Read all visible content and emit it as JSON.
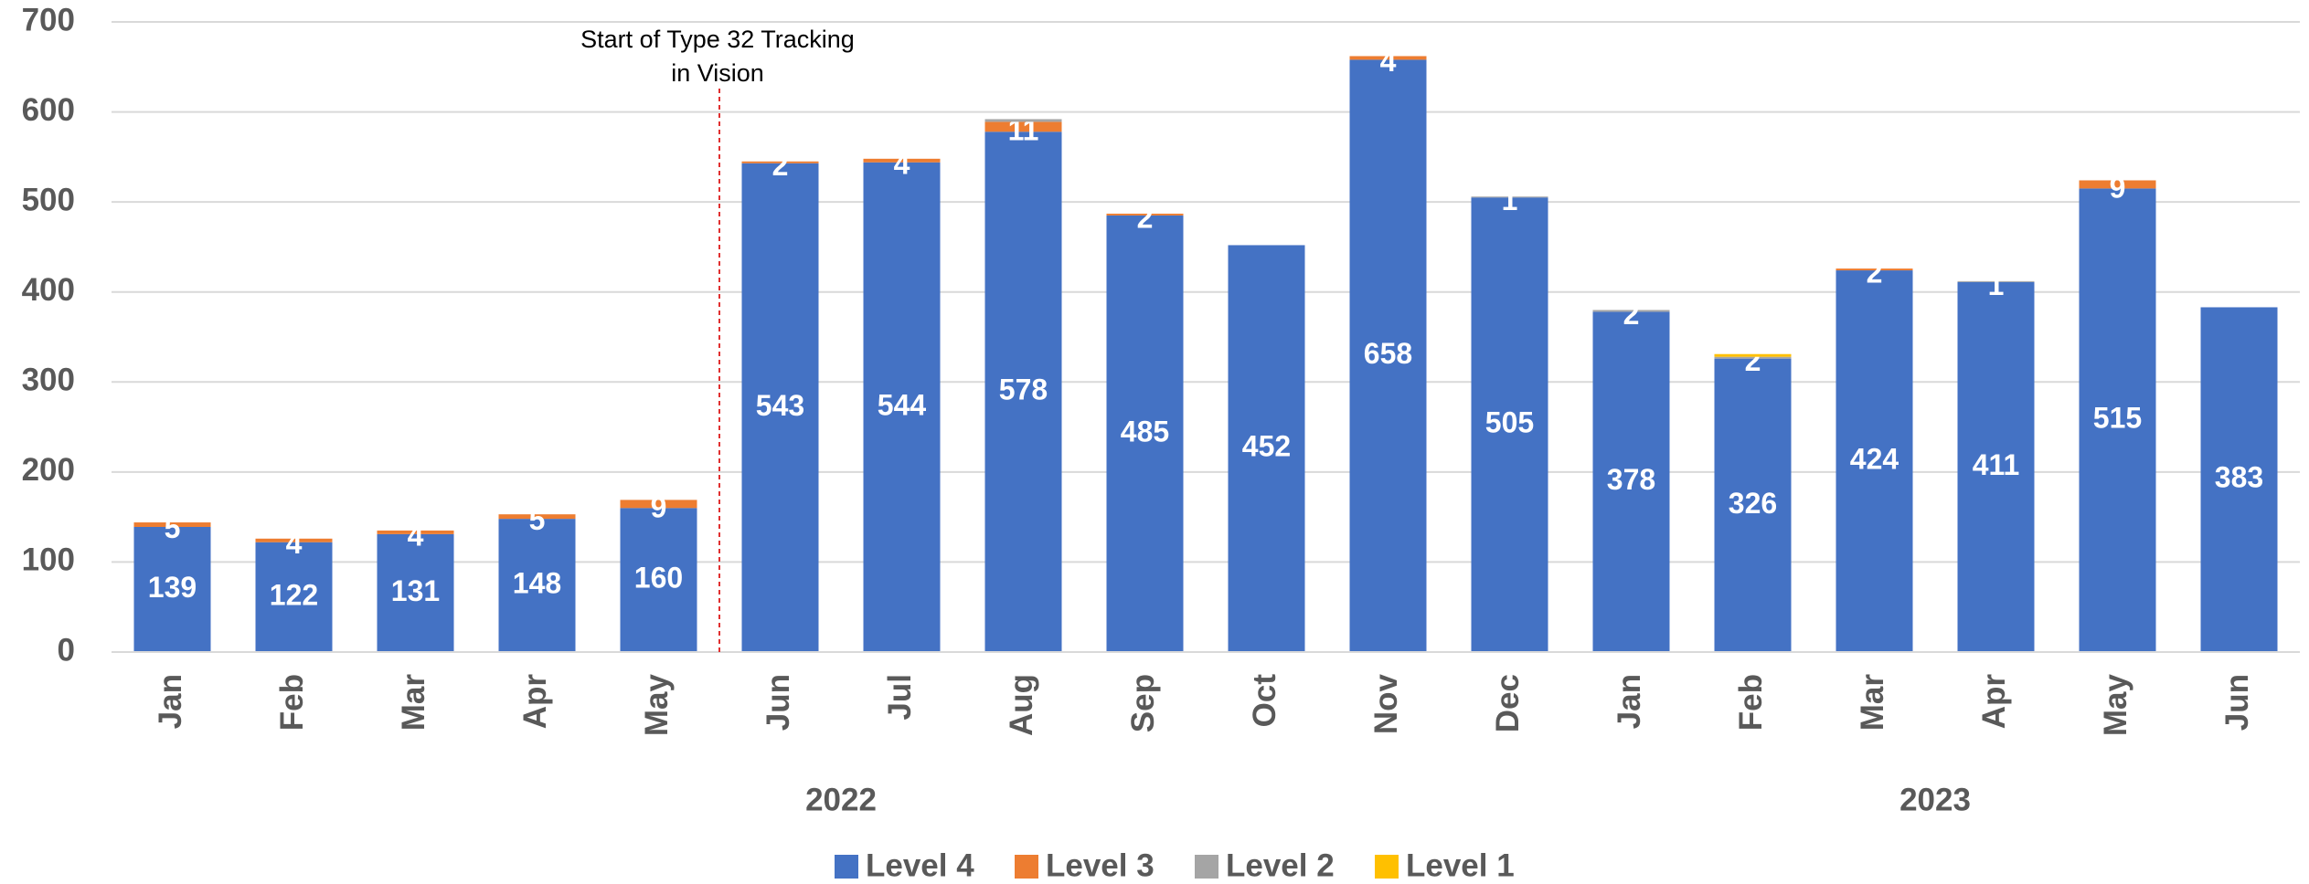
{
  "chart_data": {
    "type": "stacked_bar",
    "categories": [
      "Jan",
      "Feb",
      "Mar",
      "Apr",
      "May",
      "Jun",
      "Jul",
      "Aug",
      "Sep",
      "Oct",
      "Nov",
      "Dec",
      "Jan",
      "Feb",
      "Mar",
      "Apr",
      "May",
      "Jun"
    ],
    "groups": [
      {
        "label": "2022",
        "span": [
          0,
          11
        ]
      },
      {
        "label": "2023",
        "span": [
          12,
          17
        ]
      }
    ],
    "series": [
      {
        "name": "Level 4",
        "color": "#4472c4",
        "values": [
          139,
          122,
          131,
          148,
          160,
          543,
          544,
          578,
          485,
          452,
          658,
          505,
          378,
          326,
          424,
          411,
          515,
          383
        ]
      },
      {
        "name": "Level 3",
        "color": "#ed7d31",
        "values": [
          5,
          4,
          4,
          5,
          9,
          2,
          4,
          11,
          2,
          0,
          4,
          0,
          0,
          0,
          2,
          0,
          9,
          0
        ]
      },
      {
        "name": "Level 2",
        "color": "#a5a5a5",
        "values": [
          0,
          0,
          0,
          0,
          0,
          0,
          0,
          3,
          0,
          0,
          0,
          1,
          2,
          2,
          0,
          1,
          0,
          0
        ],
        "value_labels": [
          null,
          null,
          null,
          null,
          null,
          null,
          null,
          null,
          null,
          null,
          null,
          "1",
          "2",
          "2",
          null,
          "1",
          null,
          null
        ]
      },
      {
        "name": "Level 1",
        "color": "#ffc000",
        "values": [
          0,
          0,
          0,
          0,
          0,
          0,
          0,
          0,
          0,
          0,
          0,
          0,
          0,
          3,
          0,
          0,
          0,
          0
        ],
        "value_labels": [
          null,
          null,
          null,
          null,
          null,
          null,
          null,
          null,
          null,
          null,
          null,
          null,
          null,
          null,
          null,
          null,
          null,
          null
        ]
      }
    ],
    "ylim": [
      0,
      700
    ],
    "yticks": [
      0,
      100,
      200,
      300,
      400,
      500,
      600,
      700
    ],
    "grid": true,
    "annotation": {
      "lines": [
        "Start of Type 32 Tracking",
        "in Vision"
      ],
      "after_category": 4
    },
    "legend": "bottom"
  }
}
